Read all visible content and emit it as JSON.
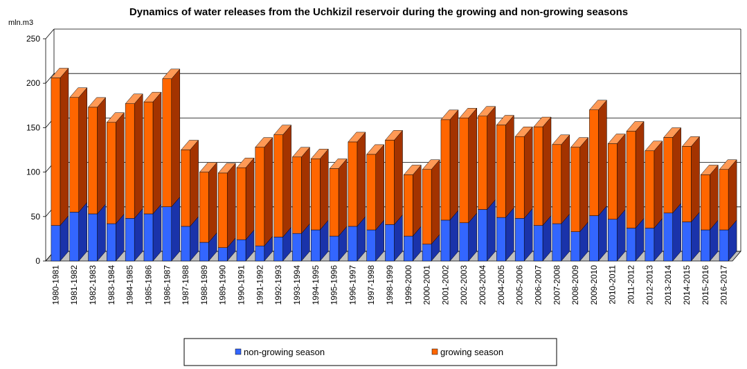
{
  "chart_data": {
    "type": "bar",
    "stacked": true,
    "three_d": true,
    "title": "Dynamics of water releases from the Uchkizil reservoir during the growing and non-growing seasons",
    "ylabel": "mln.m3",
    "xlabel": "",
    "ylim": [
      0,
      250
    ],
    "yticks": [
      0,
      50,
      100,
      150,
      200,
      250
    ],
    "grid": true,
    "legend_position": "bottom",
    "categories": [
      "1980-1981",
      "1981-1982",
      "1982-1983",
      "1983-1984",
      "1984-1985",
      "1985-1986",
      "1986-1987",
      "1987-1988",
      "1988-1989",
      "1989-1990",
      "1990-1991",
      "1991-1992",
      "1992-1993",
      "1993-1994",
      "1994-1995",
      "1995-1996",
      "1996-1997",
      "1997-1998",
      "1998-1999",
      "1999-2000",
      "2000-2001",
      "2001-2002",
      "2002-2003",
      "2003-2004",
      "2004-2005",
      "2005-2006",
      "2006-2007",
      "2007-2008",
      "2008-2009",
      "2009-2010",
      "2010-2011",
      "2011-2012",
      "2012-2013",
      "2013-2014",
      "2014-2015",
      "2015-2016",
      "2016-2017"
    ],
    "series": [
      {
        "name": "non-growing season",
        "color": "#3366ff",
        "values": [
          40,
          55,
          53,
          42,
          48,
          53,
          61,
          39,
          21,
          15,
          24,
          17,
          27,
          31,
          35,
          28,
          39,
          35,
          41,
          28,
          19,
          46,
          43,
          58,
          49,
          48,
          40,
          42,
          33,
          51,
          47,
          37,
          37,
          54,
          44,
          35,
          35
        ]
      },
      {
        "name": "growing season",
        "color": "#ff6600",
        "values": [
          166,
          129,
          120,
          114,
          129,
          126,
          144,
          86,
          79,
          84,
          81,
          111,
          115,
          86,
          80,
          76,
          95,
          85,
          95,
          69,
          84,
          113,
          118,
          105,
          104,
          92,
          111,
          89,
          95,
          119,
          85,
          109,
          87,
          85,
          85,
          62,
          68
        ]
      }
    ]
  },
  "colors": {
    "non_growing_front": "#3366ff",
    "non_growing_top": "#6688ff",
    "non_growing_side": "#1a33aa",
    "growing_front": "#ff6600",
    "growing_top": "#ff9955",
    "growing_side": "#a33300",
    "floor": "#c0c0c0",
    "grid": "#000000"
  }
}
